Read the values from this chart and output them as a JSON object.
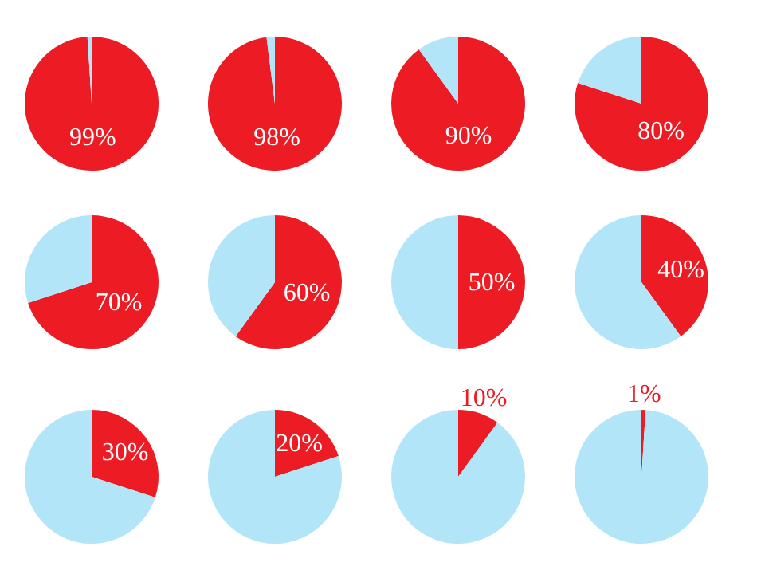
{
  "chart_data": [
    {
      "type": "pie",
      "categories": [
        null,
        null
      ],
      "values": [
        99,
        1
      ],
      "colors": [
        "#ed1c24",
        "#b3e5f9"
      ],
      "value_labels": [
        "99%",
        null
      ]
    },
    {
      "type": "pie",
      "categories": [
        null,
        null
      ],
      "values": [
        98,
        2
      ],
      "colors": [
        "#ed1c24",
        "#b3e5f9"
      ],
      "value_labels": [
        "98%",
        null
      ]
    },
    {
      "type": "pie",
      "categories": [
        null,
        null
      ],
      "values": [
        90,
        10
      ],
      "colors": [
        "#ed1c24",
        "#b3e5f9"
      ],
      "value_labels": [
        "90%",
        null
      ]
    },
    {
      "type": "pie",
      "categories": [
        null,
        null
      ],
      "values": [
        80,
        20
      ],
      "colors": [
        "#ed1c24",
        "#b3e5f9"
      ],
      "value_labels": [
        "80%",
        null
      ]
    },
    {
      "type": "pie",
      "categories": [
        null,
        null
      ],
      "values": [
        70,
        30
      ],
      "colors": [
        "#ed1c24",
        "#b3e5f9"
      ],
      "value_labels": [
        "70%",
        null
      ]
    },
    {
      "type": "pie",
      "categories": [
        null,
        null
      ],
      "values": [
        60,
        40
      ],
      "colors": [
        "#ed1c24",
        "#b3e5f9"
      ],
      "value_labels": [
        "60%",
        null
      ]
    },
    {
      "type": "pie",
      "categories": [
        null,
        null
      ],
      "values": [
        50,
        50
      ],
      "colors": [
        "#ed1c24",
        "#b3e5f9"
      ],
      "value_labels": [
        "50%",
        null
      ]
    },
    {
      "type": "pie",
      "categories": [
        null,
        null
      ],
      "values": [
        40,
        60
      ],
      "colors": [
        "#ed1c24",
        "#b3e5f9"
      ],
      "value_labels": [
        "40%",
        null
      ]
    },
    {
      "type": "pie",
      "categories": [
        null,
        null
      ],
      "values": [
        30,
        70
      ],
      "colors": [
        "#ed1c24",
        "#b3e5f9"
      ],
      "value_labels": [
        "30%",
        null
      ]
    },
    {
      "type": "pie",
      "categories": [
        null,
        null
      ],
      "values": [
        20,
        80
      ],
      "colors": [
        "#ed1c24",
        "#b3e5f9"
      ],
      "value_labels": [
        "20%",
        null
      ]
    },
    {
      "type": "pie",
      "categories": [
        null,
        null
      ],
      "values": [
        10,
        90
      ],
      "colors": [
        "#ed1c24",
        "#b3e5f9"
      ],
      "value_labels": [
        "10%",
        null
      ]
    },
    {
      "type": "pie",
      "categories": [
        null,
        null
      ],
      "values": [
        1,
        99
      ],
      "colors": [
        "#ed1c24",
        "#b3e5f9"
      ],
      "value_labels": [
        "1%",
        null
      ]
    }
  ]
}
